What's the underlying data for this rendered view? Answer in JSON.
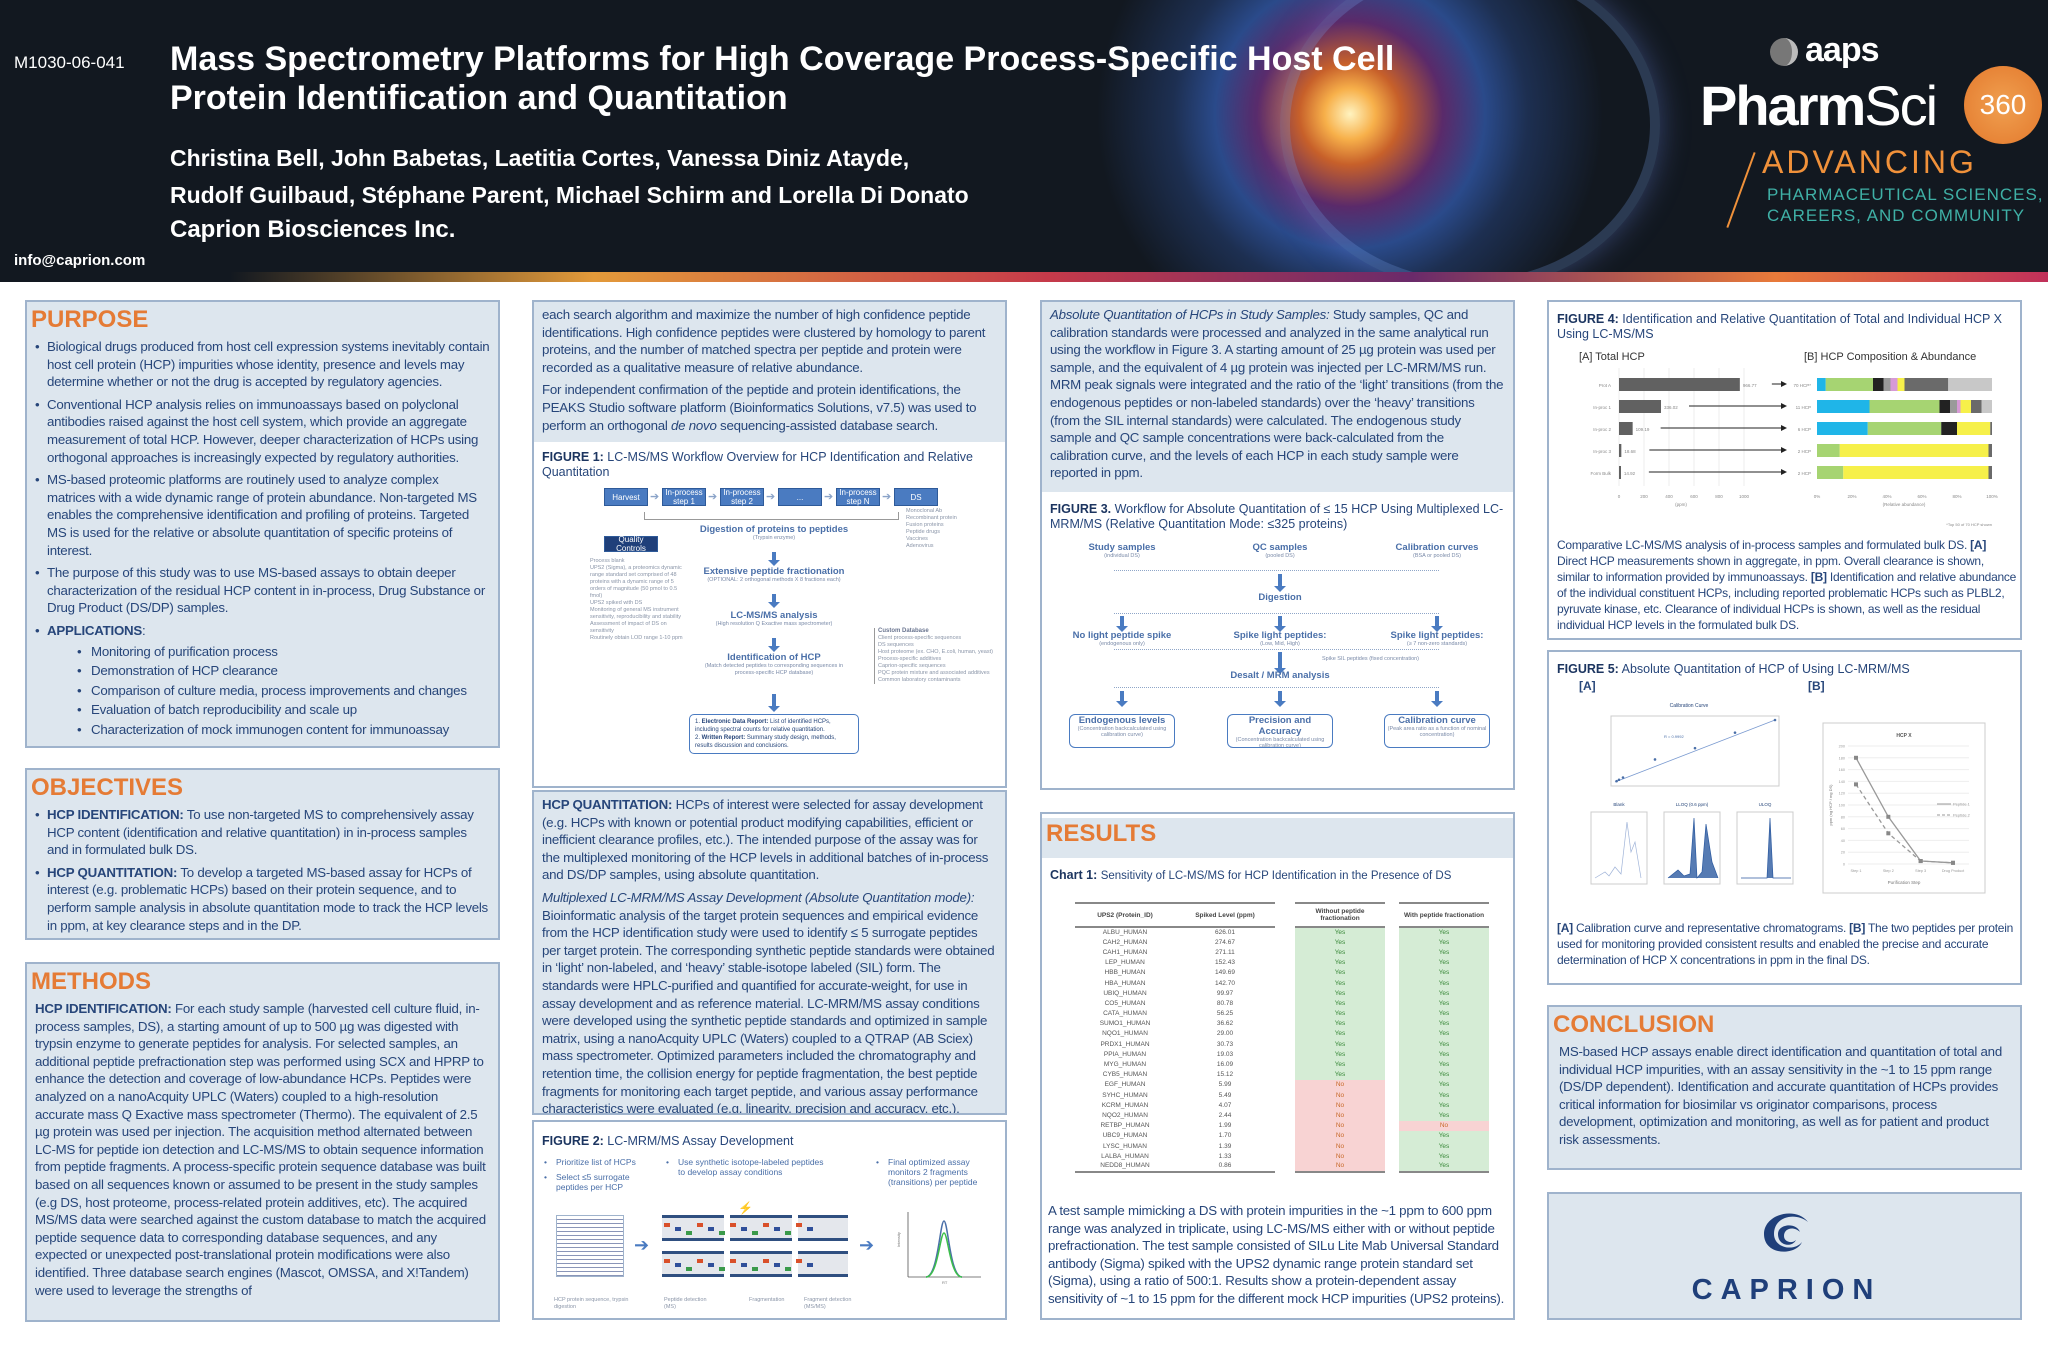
{
  "header": {
    "poster_code": "M1030-06-041",
    "title": "Mass Spectrometry Platforms for High Coverage Process-Specific Host Cell Protein Identification and Quantitation",
    "authors_line1": "Christina Bell, John Babetas, Laetitia Cortes, Vanessa Diniz Atayde,",
    "authors_line2": "Rudolf Guilbaud, Stéphane Parent, Michael Schirm and Lorella Di Donato",
    "organization": "Caprion Biosciences Inc.",
    "email": "info@caprion.com",
    "conference_logo": {
      "aaps": "aaps",
      "pharm": "Pharm",
      "sci": "Sci",
      "num": "360",
      "advancing": "ADVANCING",
      "tag1": "PHARMACEUTICAL SCIENCES,",
      "tag2": "CAREERS, AND COMMUNITY"
    }
  },
  "purpose": {
    "heading": "PURPOSE",
    "items": [
      "Biological drugs produced from host cell expression systems inevitably contain host cell protein (HCP) impurities whose identity, presence and levels may determine whether or not the drug is accepted by regulatory agencies.",
      "Conventional HCP analysis relies on immunoassays based on polyclonal antibodies raised against the host cell system, which provide an aggregate measurement of total HCP. However, deeper characterization of HCPs using orthogonal approaches is increasingly expected by regulatory authorities.",
      "MS-based proteomic platforms are routinely used to analyze complex matrices with a wide dynamic range of protein abundance. Non-targeted MS enables the comprehensive identification and profiling of proteins. Targeted MS is used for the relative or absolute quantitation of specific proteins of interest.",
      "The purpose of this study was to use MS-based assays to obtain deeper characterization of the residual HCP content in in-process, Drug Substance or Drug Product (DS/DP) samples."
    ],
    "applications_label": "APPLICATIONS",
    "applications": [
      "Monitoring of purification process",
      "Demonstration of HCP clearance",
      "Comparison of culture media, process improvements and changes",
      "Evaluation of batch reproducibility and scale up",
      "Characterization of mock immunogen content for immunoassay"
    ]
  },
  "objectives": {
    "heading": "OBJECTIVES",
    "items": [
      {
        "lead": "HCP IDENTIFICATION:",
        "text": " To use non-targeted MS to comprehensively assay HCP content (identification and relative quantitation) in in-process samples and in formulated bulk DS."
      },
      {
        "lead": "HCP QUANTITATION:",
        "text": " To develop a targeted MS-based assay for HCPs of interest (e.g. problematic HCPs) based on their protein sequence, and to perform sample analysis in absolute quantitation mode to track the HCP levels in ppm, at key clearance steps and in the DP."
      }
    ]
  },
  "methods": {
    "heading": "METHODS",
    "lead": "HCP IDENTIFICATION:",
    "text": " For each study sample (harvested cell culture fluid, in-process samples, DS), a starting amount of up to 500 µg was digested with trypsin enzyme to generate peptides for analysis. For selected samples, an additional peptide prefractionation step was performed using SCX and HPRP to enhance the detection and coverage of low-abundance HCPs. Peptides were analyzed on a nanoAcquity UPLC (Waters) coupled to a high-resolution accurate mass Q Exactive mass spectrometer (Thermo). The equivalent of 2.5 µg protein was used per injection. The acquisition method alternated between LC-MS for peptide ion detection and LC-MS/MS to obtain sequence information from peptide fragments. A process-specific protein sequence database was built based on all sequences known or assumed to be present in the study samples (e.g DS, host proteome, process-related protein additives, etc). The acquired MS/MS data were searched against the custom database to match the acquired peptide sequence data to corresponding database sequences, and any expected or unexpected post-translational protein modifications were also identified. Three database search engines (Mascot, OMSSA, and X!Tandem) were used to leverage the strengths of"
  },
  "col2": {
    "p1": "each search algorithm and maximize the number of high confidence peptide identifications. High confidence peptides were clustered by homology to parent proteins, and the number of matched spectra per peptide and protein were recorded as a qualitative measure of relative abundance.",
    "p2a": "For independent confirmation of the peptide and protein identifications, the PEAKS Studio software platform (Bioinformatics Solutions, v7.5) was used to perform an orthogonal ",
    "p2i": "de novo",
    "p2b": " sequencing-assisted database search."
  },
  "figure1": {
    "label": "FIGURE 1:",
    "caption": "LC-MS/MS Workflow Overview for HCP Identification and Relative Quantitation",
    "steps": [
      "Harvest",
      "In-process step 1",
      "In-process step 2",
      "...",
      "In-process step N",
      "DS"
    ],
    "products": [
      "Monoclonal Ab",
      "Recombinant protein",
      "Fusion proteins",
      "Peptide drugs",
      "Vaccines",
      "Adenovirus"
    ],
    "stages": [
      {
        "title": "Digestion of proteins to peptides",
        "sub": "(Trypsin enzyme)"
      },
      {
        "title": "Extensive peptide fractionation",
        "sub": "(OPTIONAL: 2 orthogonal methods X 8 fractions each)"
      },
      {
        "title": "LC-MS/MS analysis",
        "sub": "(High resolution Q Exactive mass spectrometer)"
      },
      {
        "title": "Identification of HCP",
        "sub": "(Match detected peptides to corresponding sequences in process-specific HCP database)"
      }
    ],
    "pqc_title": "Process Quality Controls (PQC)",
    "pqc_items": [
      "Process blank",
      "UPS2 (Sigma), a proteomics dynamic range standard set comprised of 48 proteins with a dynamic range of 5 orders of magnitude (50 pmol to 0.5 fmol)",
      "UPS2 spiked with DS",
      "Monitoring of general MS instrument sensitivity, reproducibility and stability",
      "Assessment of impact of DS on sensitivity",
      "Routinely obtain LOD range 1-10 ppm"
    ],
    "db_title": "Custom Database",
    "db_items": [
      "Client process-specific sequences",
      "DS sequences",
      "Host proteome (ex. CHO, E.coli, human, yeast)",
      "Process-specific additives",
      "Caprion-specific sequences",
      "PQC protein mixture and associated additives",
      "Common laboratory contaminants"
    ],
    "report1_lead": "Electronic Data Report:",
    "report1": " List of identified HCPs, including spectral counts for relative quantitation.",
    "report2_lead": "Written Report:",
    "report2": " Summary study design, methods, results discussion and conclusions."
  },
  "hcp_quant": {
    "lead": "HCP QUANTITATION:",
    "text": "  HCPs of interest were selected for assay development (e.g. HCPs with known or potential product modifying capabilities, efficient or inefficient clearance profiles, etc.). The intended purpose of the assay was for the multiplexed monitoring of the HCP levels in additional batches of in-process and DS/DP samples, using absolute quantitation.",
    "sub_italic": "Multiplexed LC-MRM/MS Assay Development (Absolute Quantitation mode):",
    "sub_text": " Bioinformatic analysis of the target protein sequences and empirical evidence from the HCP identification study were used to identify ≤ 5 surrogate peptides per target protein. The corresponding synthetic peptide standards were obtained in ‘light’ non-labeled, and ‘heavy’ stable-isotope labeled (SIL) form. The standards were HPLC-purified and quantified for accurate-weight, for use in assay development and as reference material. LC-MRM/MS assay conditions were developed using the synthetic peptide standards and optimized in sample matrix, using a nanoAcquity UPLC (Waters) coupled to a QTRAP (AB Sciex) mass spectrometer. Optimized parameters included the chromatography and retention time, the collision energy for peptide fragmentation, the best peptide fragments for monitoring each target peptide, and various assay performance characteristics were evaluated (e.g. linearity, precision and accuracy, etc.)."
  },
  "figure2": {
    "label": "FIGURE 2:",
    "caption": "LC-MRM/MS Assay Development",
    "bullets_a": [
      "Prioritize list of HCPs",
      "Select ≤5 surrogate peptides per HCP"
    ],
    "bullets_b": [
      "Use synthetic isotope-labeled peptides to develop assay conditions"
    ],
    "bullets_c": [
      "Final optimized assay monitors 2 fragments (transitions) per peptide"
    ],
    "cap_seq": "HCP protein sequence, trypsin digestion",
    "cap_ms": "Peptide detection (MS)",
    "cap_frag": "Fragmentation",
    "cap_msms": "Fragment detection (MS/MS)",
    "y_axis": "Intensity",
    "x_axis": "RT"
  },
  "col3": {
    "lead": "Absolute Quantitation of HCPs in Study Samples:",
    "text": " Study samples, QC and calibration standards were processed and analyzed in the same analytical run using the workflow in Figure 3. A starting amount of 25 µg protein was used per sample, and the equivalent of 4 µg protein was injected per LC-MRM/MS run. MRM peak signals were integrated and the ratio of the ‘light’ transitions (from the endogenous peptides or non-labeled standards) over the ‘heavy’ transitions (from the SIL internal standards) were calculated. The endogenous study sample and QC sample concentrations were back-calculated from the calibration curve, and the levels of each HCP in each study sample were reported in ppm."
  },
  "figure3": {
    "label": "FIGURE 3.",
    "caption": "Workflow for Absolute Quantitation of ≤ 15 HCP Using Multiplexed LC-MRM/MS   (Relative Quantitation Mode: ≤325 proteins)",
    "sources": [
      {
        "t": "Study samples",
        "s": "(individual DS)"
      },
      {
        "t": "QC samples",
        "s": "(pooled DS)"
      },
      {
        "t": "Calibration curves",
        "s": "(BSA or pooled DS)"
      }
    ],
    "digestion": "Digestion",
    "spikes": [
      {
        "t": "No light peptide spike",
        "s": "(endogenous only)"
      },
      {
        "t": "Spike light peptides:",
        "s": "(Low, Mid, High)"
      },
      {
        "t": "Spike light peptides:",
        "s": "(≥ 7 non-zero standards)"
      }
    ],
    "sil_note": "Spike SIL peptides (fixed concentration)",
    "desalt": "Desalt / MRM analysis",
    "outputs": [
      {
        "t": "Endogenous levels",
        "s": "(Concentration backcalculated using calibration curve)"
      },
      {
        "t": "Precision and Accuracy",
        "s": "(Concentration backcalculated using calibration curve)"
      },
      {
        "t": "Calibration curve",
        "s": "(Peak area ratio as a function of nominal concentration)"
      }
    ]
  },
  "results": {
    "heading": "RESULTS",
    "chart_label": "Chart 1:",
    "chart_caption": "Sensitivity of LC-MS/MS for HCP Identification in the Presence of DS",
    "text": "A test sample mimicking a DS with protein impurities in the ~1 ppm to 600 ppm range was analyzed in triplicate, using LC-MS/MS either with or without peptide prefractionation. The test sample consisted of SILu Lite Mab Universal Standard antibody (Sigma) spiked with the UPS2 dynamic range protein standard set (Sigma), using a ratio of 500:1. Results show a protein-dependent assay sensitivity of ~1 to 15 ppm for the different mock HCP impurities (UPS2 proteins)."
  },
  "chart_data": [
    {
      "type": "table",
      "title": "Sensitivity of LC-MS/MS for HCP Identification in the Presence of DS",
      "columns": [
        "UPS2 (Protein_ID)",
        "Spiked Level (ppm)",
        "Without peptide fractionation",
        "With peptide fractionation"
      ],
      "rows": [
        [
          "ALBU_HUMAN",
          "626.01",
          "Yes",
          "Yes"
        ],
        [
          "CAH2_HUMAN",
          "274.67",
          "Yes",
          "Yes"
        ],
        [
          "CAH1_HUMAN",
          "271.11",
          "Yes",
          "Yes"
        ],
        [
          "LEP_HUMAN",
          "152.43",
          "Yes",
          "Yes"
        ],
        [
          "HBB_HUMAN",
          "149.69",
          "Yes",
          "Yes"
        ],
        [
          "HBA_HUMAN",
          "142.70",
          "Yes",
          "Yes"
        ],
        [
          "UBIQ_HUMAN",
          "99.97",
          "Yes",
          "Yes"
        ],
        [
          "CO5_HUMAN",
          "80.78",
          "Yes",
          "Yes"
        ],
        [
          "CATA_HUMAN",
          "56.25",
          "Yes",
          "Yes"
        ],
        [
          "SUMO1_HUMAN",
          "36.62",
          "Yes",
          "Yes"
        ],
        [
          "NQO1_HUMAN",
          "29.00",
          "Yes",
          "Yes"
        ],
        [
          "PRDX1_HUMAN",
          "30.73",
          "Yes",
          "Yes"
        ],
        [
          "PPIA_HUMAN",
          "19.03",
          "Yes",
          "Yes"
        ],
        [
          "MYG_HUMAN",
          "16.09",
          "Yes",
          "Yes"
        ],
        [
          "CYB5_HUMAN",
          "15.12",
          "Yes",
          "Yes"
        ],
        [
          "EGF_HUMAN",
          "5.99",
          "No",
          "Yes"
        ],
        [
          "SYHC_HUMAN",
          "5.49",
          "No",
          "Yes"
        ],
        [
          "KCRM_HUMAN",
          "4.07",
          "No",
          "Yes"
        ],
        [
          "NQO2_HUMAN",
          "2.44",
          "No",
          "Yes"
        ],
        [
          "RETBP_HUMAN",
          "1.99",
          "No",
          "No"
        ],
        [
          "UBC9_HUMAN",
          "1.70",
          "No",
          "Yes"
        ],
        [
          "LYSC_HUMAN",
          "1.39",
          "No",
          "Yes"
        ],
        [
          "LALBA_HUMAN",
          "1.33",
          "No",
          "Yes"
        ],
        [
          "NEDD8_HUMAN",
          "0.86",
          "No",
          "Yes"
        ]
      ]
    },
    {
      "type": "bar",
      "title": "[A] Total HCP",
      "categories": [
        "Prot A",
        "In-proc 1",
        "In-proc 2",
        "In-proc 3",
        "Form Bulk"
      ],
      "values": [
        966.77,
        336.02,
        109.19,
        18.68,
        14.92
      ],
      "value_labels": [
        "966.77",
        "336.02",
        "109.19",
        "18.68",
        "14.92"
      ],
      "xlabel": "(ppm)",
      "xlim": [
        0,
        1000
      ],
      "ticks": [
        "0",
        "200",
        "400",
        "600",
        "800",
        "1000"
      ]
    },
    {
      "type": "bar",
      "stacked": true,
      "title": "[B] HCP Composition & Abundance",
      "categories": [
        "70 HCP*",
        "11 HCP",
        "6 HCP",
        "2 HCP",
        "2 HCP"
      ],
      "xlabel": "(Relative abundance)",
      "ticks": [
        "0%",
        "20%",
        "40%",
        "60%",
        "80%",
        "100%"
      ],
      "footnote": "*Top 50 of 70 HCP shown",
      "series_colors": [
        "#1fb5e8",
        "#a6d472",
        "#222222",
        "#9a9a9a",
        "#d79ad6",
        "#f6f04a",
        "#6a6a6a",
        "#c8c8c8"
      ],
      "rows": [
        [
          0.05,
          0.27,
          0.06,
          0.04,
          0.04,
          0.04,
          0.25,
          0.25
        ],
        [
          0.3,
          0.4,
          0.06,
          0.04,
          0.02,
          0.06,
          0.06,
          0.06
        ],
        [
          0.29,
          0.42,
          0.09,
          0,
          0,
          0.19,
          0.01,
          0
        ],
        [
          0,
          0.13,
          0,
          0,
          0,
          0.85,
          0.02,
          0
        ],
        [
          0,
          0.15,
          0,
          0,
          0,
          0.83,
          0.02,
          0
        ]
      ]
    },
    {
      "type": "line",
      "title": "HCP X",
      "categories": [
        "Step 1",
        "Step 2",
        "Step 3",
        "Drug Product"
      ],
      "xlabel": "Purification Step",
      "ylabel": "ppm (ng HCP / mg DS)",
      "ylim": [
        0,
        200
      ],
      "ticks": [
        "0",
        "20",
        "40",
        "60",
        "80",
        "100",
        "120",
        "140",
        "160",
        "180",
        "200"
      ],
      "series": [
        {
          "name": "Peptide 1",
          "values": [
            180,
            80,
            5,
            2
          ]
        },
        {
          "name": "Peptide 2",
          "values": [
            135,
            52,
            5,
            2
          ]
        }
      ]
    },
    {
      "type": "scatter",
      "title": "Calibration Curve",
      "annotation": "R = 0.9992",
      "x": [
        0.2,
        0.5,
        1,
        5,
        10,
        15,
        20
      ],
      "y": [
        0.3,
        0.8,
        1.6,
        8,
        12,
        17.5,
        22
      ]
    }
  ],
  "figure4": {
    "label": "FIGURE 4:",
    "caption": "Identification and Relative Quantitation of Total and Individual HCP X Using LC-MS/MS",
    "desc": [
      {
        "b": "",
        "t": "Comparative LC-MS/MS analysis of in-process samples and formulated bulk DS. "
      },
      {
        "b": "[A]",
        "t": " Direct HCP measurements shown in aggregate, in ppm. Overall clearance is shown, similar to information provided by immunoassays. "
      },
      {
        "b": "[B]",
        "t": " Identification and relative abundance of the individual constituent HCPs, including reported problematic HCPs such as PLBL2, pyruvate kinase, etc.  Clearance of individual HCPs is shown, as well as the residual individual HCP levels in the formulated bulk DS."
      }
    ]
  },
  "figure5": {
    "label": "FIGURE 5:",
    "caption": "Absolute Quantitation of HCP of Using LC-MRM/MS",
    "a": "[A]",
    "b": "[B]",
    "chrom": [
      "Blank",
      "LLOQ (0.6 ppm)",
      "ULOQ"
    ],
    "desc": [
      {
        "b": "[A]",
        "t": " Calibration curve and representative chromatograms. "
      },
      {
        "b": "[B]",
        "t": " The two peptides per protein used for monitoring provided consistent results and enabled the precise and accurate determination of HCP X concentrations in ppm in the final DS."
      }
    ]
  },
  "conclusion": {
    "heading": "CONCLUSION",
    "text": "MS-based HCP assays enable direct identification and quantitation of total and individual HCP impurities, with an assay sensitivity in the ~1 to 15 ppm range (DS/DP dependent).   Identification and accurate quantitation of HCPs provides critical information for biosimilar vs originator comparisons, process development, optimization and monitoring, as well as for patient and product risk assessments."
  },
  "logo": {
    "name": "CAPRION"
  },
  "colors": {
    "heading": "#e57b35",
    "text": "#27467a",
    "panel": "#dde6ee",
    "border": "#9fb3cc",
    "flow": "#4a7bc1",
    "yes": "#d5ecd5",
    "no": "#f8d3d3"
  }
}
